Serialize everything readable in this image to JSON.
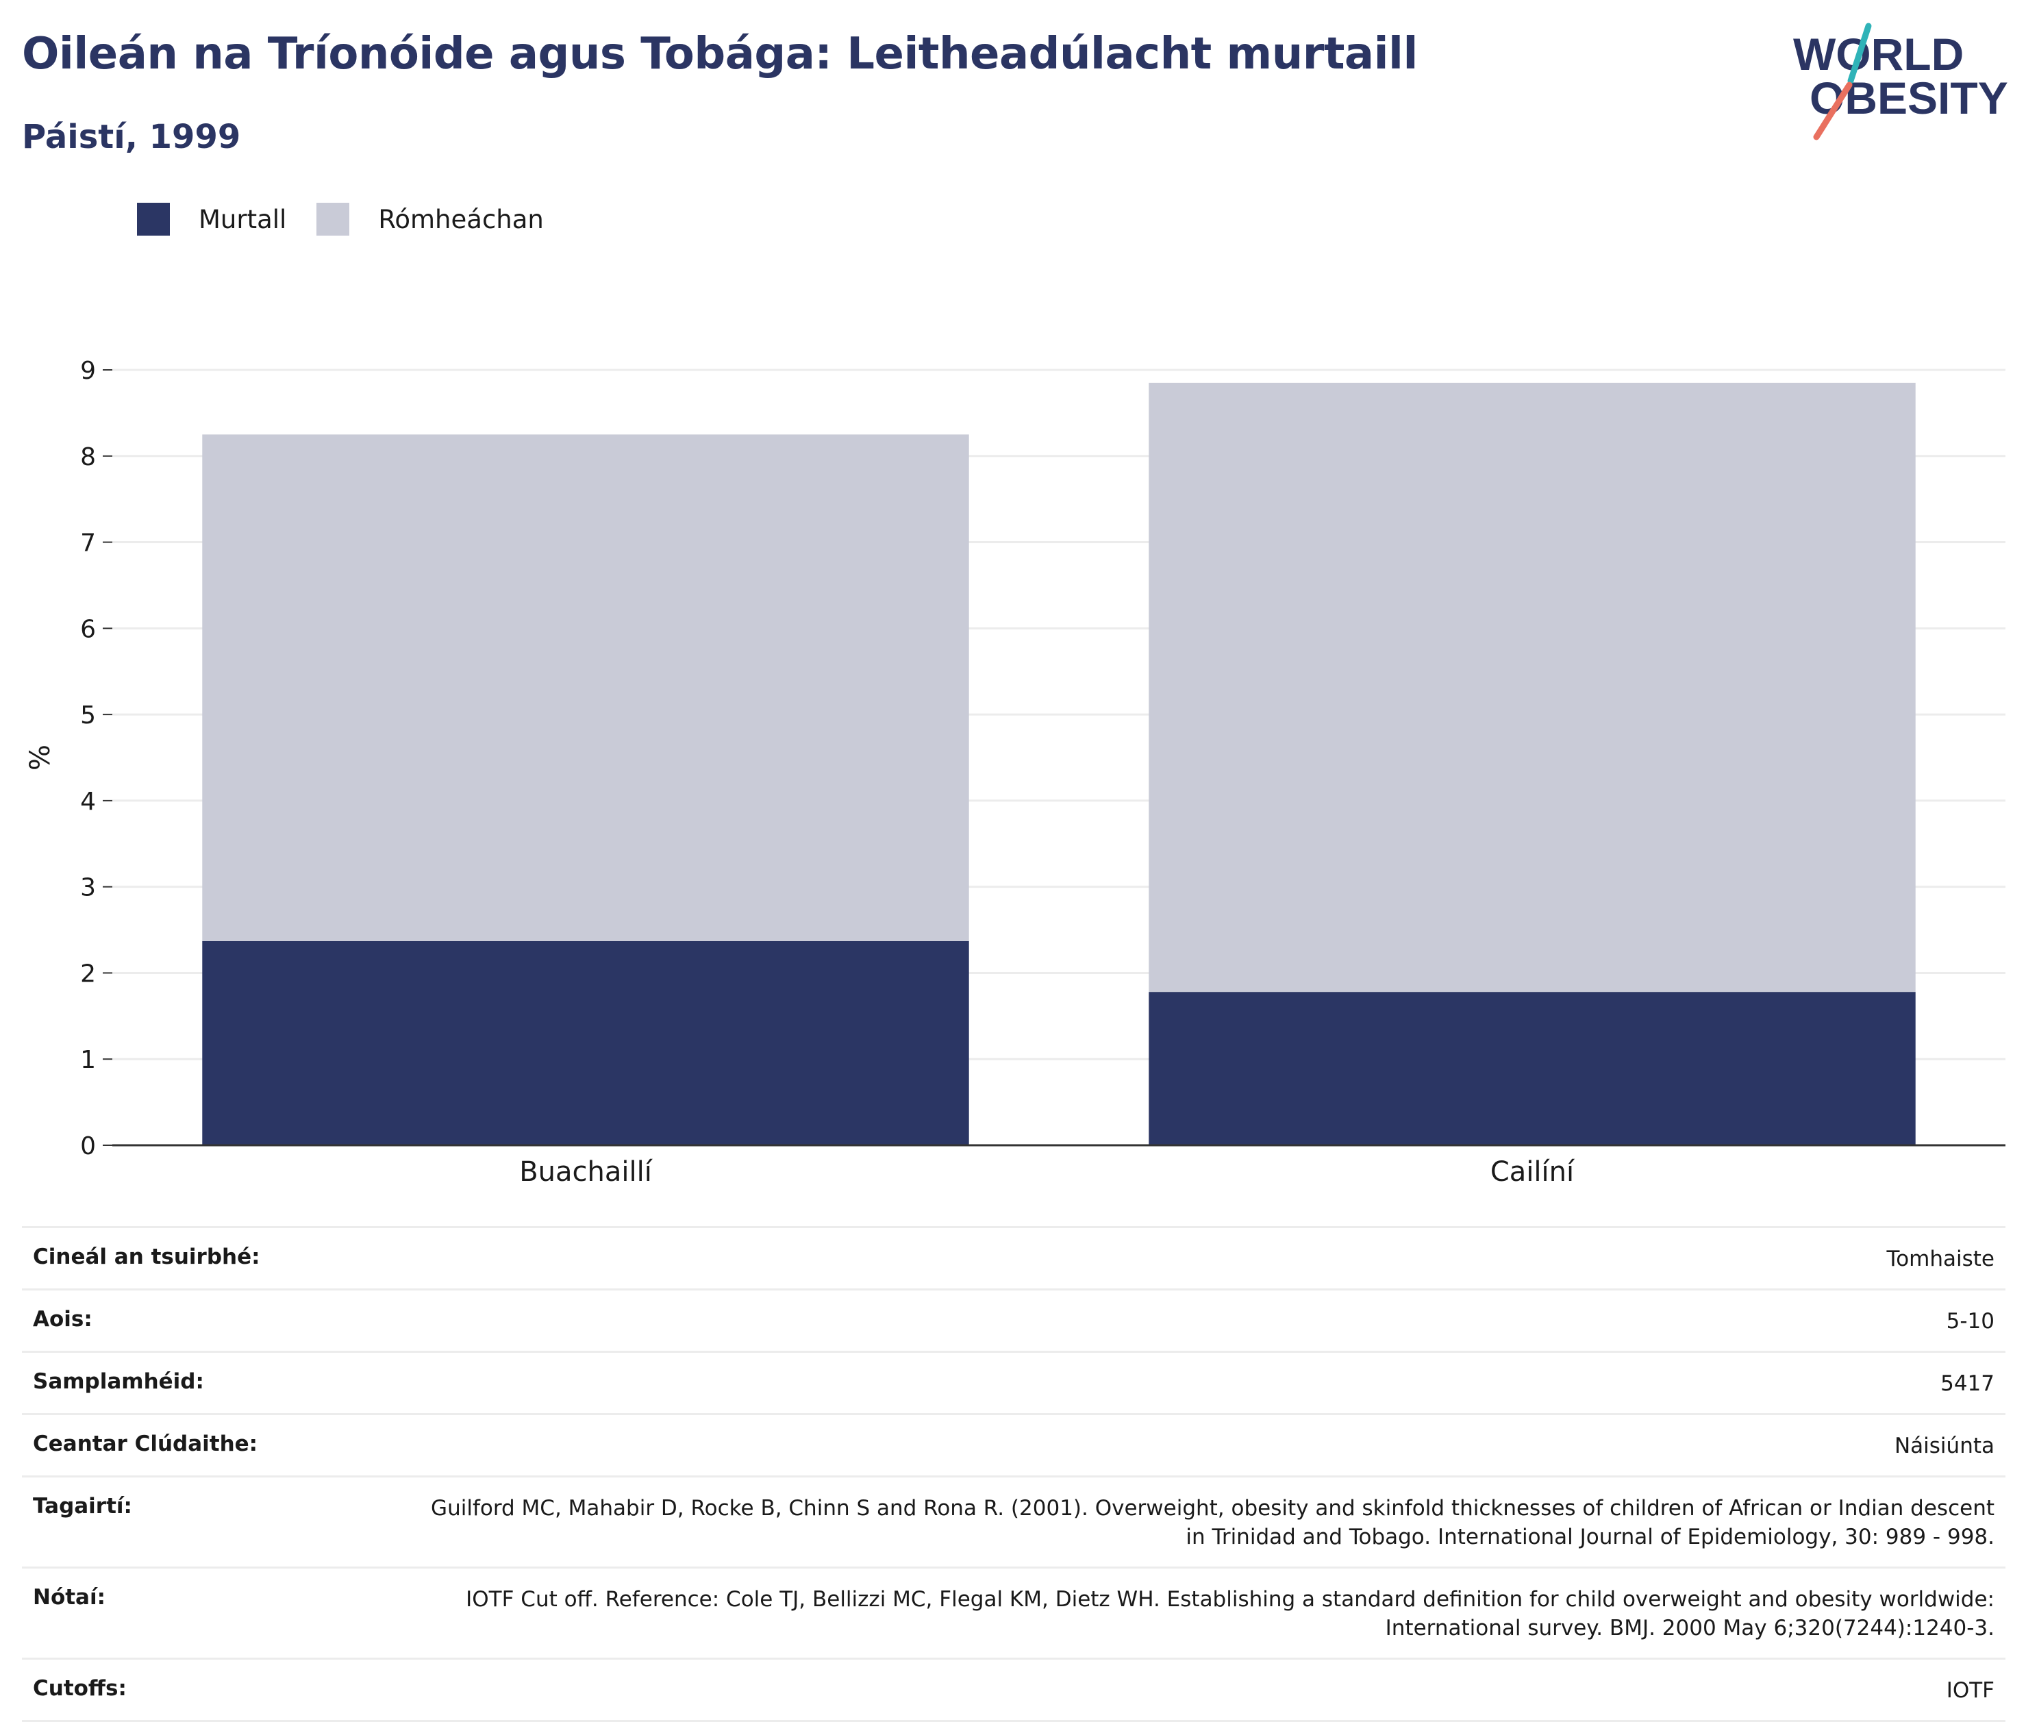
{
  "header": {
    "title": "Oileán na Tríonóide agus Tobága: Leitheadúlacht murtaill",
    "subtitle": "Páistí, 1999"
  },
  "logo": {
    "line1": "WORLD",
    "line2": "OBESITY"
  },
  "colors": {
    "obesity": "#2b3664",
    "overweight": "#c9cbd7",
    "text": "#2b3563",
    "grid": "#ececec",
    "axis": "#333333"
  },
  "chart_data": {
    "type": "bar",
    "stacked": true,
    "categories": [
      "Buachaillí",
      "Cailíní"
    ],
    "series": [
      {
        "name": "Murtall",
        "values": [
          2.37,
          1.78
        ]
      },
      {
        "name": "Rómheáchan",
        "values": [
          5.88,
          7.07
        ]
      }
    ],
    "ylabel": "%",
    "xlabel": "",
    "ylim": [
      0,
      9
    ],
    "yticks": [
      0,
      1,
      2,
      3,
      4,
      5,
      6,
      7,
      8,
      9
    ],
    "grid": true,
    "legend_position": "top-left"
  },
  "meta": [
    {
      "label": "Cineál an tsuirbhé:",
      "value": "Tomhaiste"
    },
    {
      "label": "Aois:",
      "value": "5-10"
    },
    {
      "label": "Samplamhéid:",
      "value": "5417"
    },
    {
      "label": "Ceantar Clúdaithe:",
      "value": "Náisiúnta"
    },
    {
      "label": "Tagairtí:",
      "value": "Guilford MC, Mahabir D, Rocke B, Chinn S and Rona R. (2001). Overweight, obesity and skinfold thicknesses of children of African or Indian descent in Trinidad and Tobago. International Journal of Epidemiology, 30: 989 - 998."
    },
    {
      "label": "Nótaí:",
      "value": "IOTF Cut off. Reference: Cole TJ, Bellizzi MC, Flegal KM, Dietz WH. Establishing a standard definition for child overweight and obesity worldwide: International survey. BMJ. 2000 May 6;320(7244):1240-3."
    },
    {
      "label": "Cutoffs:",
      "value": "IOTF"
    }
  ]
}
